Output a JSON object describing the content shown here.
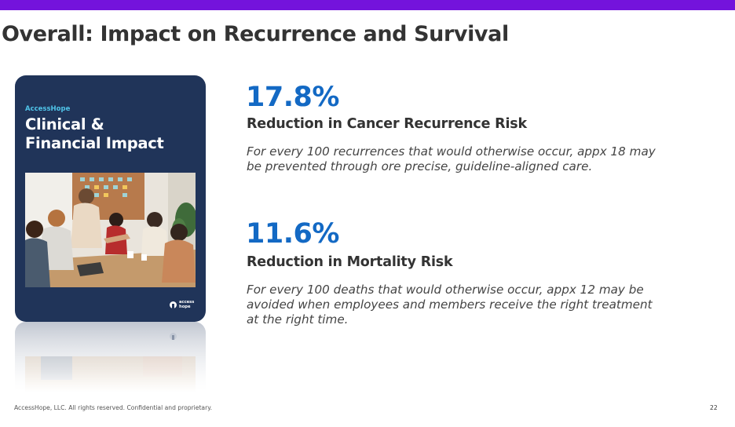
{
  "slide": {
    "title": "Overall: Impact on Recurrence and Survival",
    "page_number": "22"
  },
  "cover": {
    "brand": "AccessHope",
    "title_line1": "Clinical &",
    "title_line2": "Financial Impact",
    "logo_line1": "access",
    "logo_line2": "hope"
  },
  "stats": [
    {
      "value": "17.8%",
      "label": "Reduction in Cancer Recurrence Risk",
      "desc_line1": "For every 100 recurrences that would otherwise occur, appx 18 may",
      "desc_line2": "be prevented through ore precise, guideline-aligned care."
    },
    {
      "value": "11.6%",
      "label": "Reduction in Mortality Risk",
      "desc_line1": "For every 100 deaths that would otherwise occur, appx 12 may be",
      "desc_line2": "avoided when employees and members receive the right treatment",
      "desc_line3": "at the right time."
    }
  ],
  "footer": {
    "copyright": "AccessHope, LLC. All rights reserved. Confidential and proprietary."
  },
  "colors": {
    "accent_bar": "#7413dc",
    "stat_blue": "#1369c4",
    "cover_navy": "#203459",
    "brand_cyan": "#4fc3e8"
  }
}
